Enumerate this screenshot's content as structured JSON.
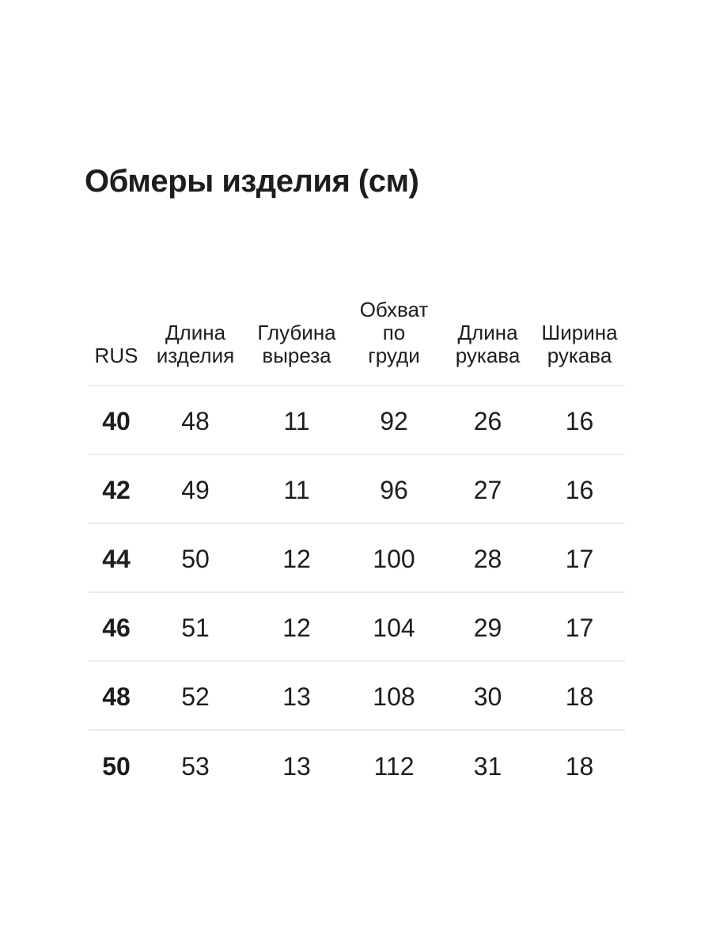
{
  "chart_data": {
    "type": "table",
    "title": "Обмеры изделия (см)",
    "units": "см",
    "columns": [
      "RUS",
      "Длина изделия",
      "Глубина выреза",
      "Обхват по груди",
      "Длина рукава",
      "Ширина рукава"
    ],
    "rows": [
      [
        40,
        48,
        11,
        92,
        26,
        16
      ],
      [
        42,
        49,
        11,
        96,
        27,
        16
      ],
      [
        44,
        50,
        12,
        100,
        28,
        17
      ],
      [
        46,
        51,
        12,
        104,
        29,
        17
      ],
      [
        48,
        52,
        13,
        108,
        30,
        18
      ],
      [
        50,
        53,
        13,
        112,
        31,
        18
      ]
    ]
  },
  "table_display": {
    "headers": [
      "RUS",
      "Длина\nизделия",
      "Глубина\nвыреза",
      "Обхват\nпо\nгруди",
      "Длина\nрукава",
      "Ширина\nрукава"
    ]
  },
  "colors": {
    "background": "#ffffff",
    "text": "#1d1d1d",
    "divider": "#ebebeb"
  }
}
